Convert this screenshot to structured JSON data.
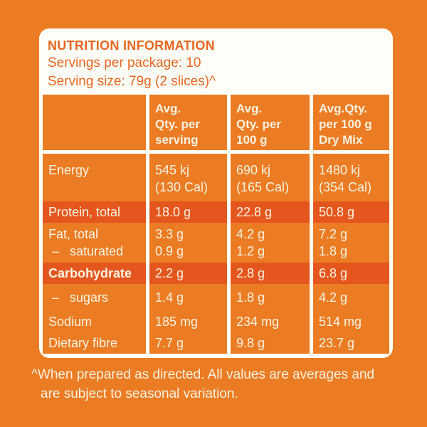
{
  "colors": {
    "background_orange": "#EB7C23",
    "highlight_row_orange": "#E5561E",
    "card_white": "#FFFDF7",
    "heading_text_orange": "#E7661F",
    "cell_text_cream": "#FAF2E3"
  },
  "panel": {
    "title": "NUTRITION INFORMATION",
    "servings_line": "Servings per package: 10",
    "serving_size_line": "Serving size: 79g (2 slices)^"
  },
  "table": {
    "columns": [
      "",
      "Avg.\nQty. per\nserving",
      "Avg.\nQty. per\n100 g",
      "Avg.Qty.\nper 100 g\nDry Mix"
    ],
    "rows": {
      "energy": {
        "label": "Energy",
        "values": [
          "545 kj\n(130 Cal)",
          "690 kj\n(165 Cal)",
          "1480 kj\n(354 Cal)"
        ]
      },
      "protein": {
        "label": "Protein, total",
        "values": [
          "18.0 g",
          "22.8 g",
          "50.8 g"
        ]
      },
      "fat": {
        "label": "Fat, total\n –   saturated",
        "values": [
          "3.3 g\n0.9 g",
          "4.2 g\n1.2 g",
          "7.2 g\n1.8 g"
        ]
      },
      "carbohydrate": {
        "label": "Carbohydrate",
        "values": [
          "2.2 g",
          "2.8 g",
          "6.8 g"
        ]
      },
      "sugars": {
        "label": " –   sugars",
        "values": [
          "1.4 g",
          "1.8 g",
          "4.2 g"
        ]
      },
      "sodium": {
        "label": "Sodium",
        "values": [
          "185 mg",
          "234 mg",
          "514 mg"
        ]
      },
      "dietary_fibre": {
        "label": "Dietary fibre",
        "values": [
          "7.7 g",
          "9.8 g",
          "23.7 g"
        ]
      }
    }
  },
  "footnote": {
    "line1": "^When prepared as directed. All values are averages and",
    "line2": "are subject to seasonal variation."
  }
}
